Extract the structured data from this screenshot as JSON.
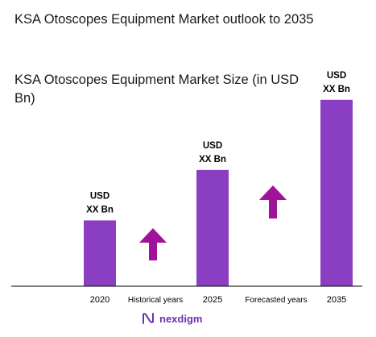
{
  "header": {
    "title": "KSA Otoscopes Equipment Market outlook to 2035",
    "subtitle": "KSA Otoscopes Equipment Market Size (in USD Bn)"
  },
  "chart_data": {
    "type": "bar",
    "categories": [
      "2020",
      "2025",
      "2035"
    ],
    "values": [
      0.3,
      0.53,
      0.85
    ],
    "data_labels": [
      "USD XX Bn",
      "USD XX Bn",
      "USD XX Bn"
    ],
    "between_labels": [
      "Historical years",
      "Forecasted years"
    ],
    "bar_color": "#8a3fc2",
    "arrow_color": "#a0129a",
    "ylim": [
      0,
      1
    ]
  },
  "footer": {
    "logo_text": "nexdigm",
    "logo_icon": "nexdigm-logo-icon"
  }
}
